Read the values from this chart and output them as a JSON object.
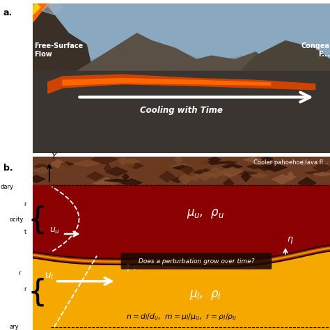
{
  "fig_width": 4.74,
  "fig_height": 4.74,
  "dpi": 100,
  "upper_layer_color": "#8b0000",
  "lower_layer_color": "#f5a800",
  "crust_color": "#6b3a22",
  "sky_color": "#8da8be",
  "terrain_dark": "#4a4438",
  "terrain_mid": "#5a5045",
  "ground_color": "#3a3530",
  "lava_surface_color": "#aa3300",
  "interface_black": "#1a0000",
  "interface_red": "#cc2200",
  "interface_gold": "#b8860b",
  "white": "#ffffff",
  "black": "#000000",
  "text_cooling": "Cooling with Time",
  "text_free_surface": "Free-Surface\nFlow",
  "text_congeal_top": "Congea",
  "text_congeal_bot": "F...",
  "text_cooler_pahoehoe": "Cooler pahoehoe lava fl...",
  "text_mu_u_rho_u": "$\\mu_u$,  $\\rho_u$",
  "text_mu_l_rho_l": "$\\mu_l$,  $\\rho_l$",
  "text_u_u": "$u_u$",
  "text_u_l": "$u_l$",
  "text_eta": "$\\eta$",
  "text_t": "$t$",
  "text_perturbation": "Does a perturbation grow over time?",
  "text_n_m_r": "$n = d_l/d_u$,  $m = \\mu_l/\\mu_u$,  $r = \\rho_l/\\rho_u$",
  "text_Y": "$Y$",
  "label_a": "a.",
  "label_b": "b.",
  "side_labels_upper": [
    "",
    "r",
    "ocity",
    "t"
  ],
  "side_labels_lower": [
    "",
    "r",
    "r"
  ]
}
